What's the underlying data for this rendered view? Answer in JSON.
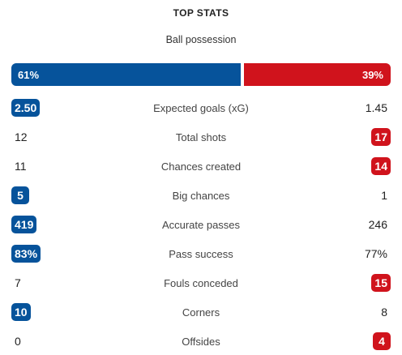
{
  "header": {
    "title": "TOP STATS"
  },
  "possession": {
    "label": "Ball possession",
    "home": 61,
    "away": 39,
    "home_label": "61%",
    "away_label": "39%"
  },
  "colors": {
    "home": "#06539b",
    "away": "#d0131c"
  },
  "stats": [
    {
      "label": "Expected goals (xG)",
      "home": "2.50",
      "away": "1.45",
      "leader": "home"
    },
    {
      "label": "Total shots",
      "home": "12",
      "away": "17",
      "leader": "away"
    },
    {
      "label": "Chances created",
      "home": "11",
      "away": "14",
      "leader": "away"
    },
    {
      "label": "Big chances",
      "home": "5",
      "away": "1",
      "leader": "home"
    },
    {
      "label": "Accurate passes",
      "home": "419",
      "away": "246",
      "leader": "home"
    },
    {
      "label": "Pass success",
      "home": "83%",
      "away": "77%",
      "leader": "home"
    },
    {
      "label": "Fouls conceded",
      "home": "7",
      "away": "15",
      "leader": "away"
    },
    {
      "label": "Corners",
      "home": "10",
      "away": "8",
      "leader": "home"
    },
    {
      "label": "Offsides",
      "home": "0",
      "away": "4",
      "leader": "away"
    }
  ]
}
